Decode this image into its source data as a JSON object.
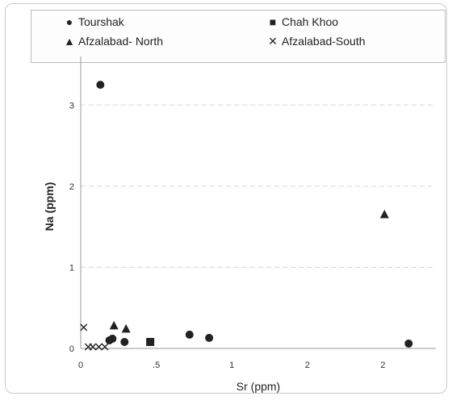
{
  "chart_data": {
    "type": "scatter",
    "xlabel": "Sr (ppm)",
    "ylabel": "Na (ppm)",
    "x_tick_labels": [
      "0",
      ".5",
      "1",
      "2",
      "2"
    ],
    "y_tick_labels": [
      "0",
      "1",
      "2",
      "3"
    ],
    "xlim": [
      0,
      2.35
    ],
    "ylim": [
      0,
      3.5
    ],
    "grid": true,
    "legend_position": "top",
    "series": [
      {
        "name": "Tourshak",
        "marker": "circle",
        "color": "#222222",
        "points": [
          [
            0.13,
            3.25
          ],
          [
            0.19,
            0.1
          ],
          [
            0.21,
            0.12
          ],
          [
            0.29,
            0.08
          ],
          [
            0.72,
            0.17
          ],
          [
            0.85,
            0.13
          ],
          [
            2.17,
            0.06
          ]
        ]
      },
      {
        "name": "Chah Khoo",
        "marker": "square",
        "color": "#222222",
        "points": [
          [
            0.46,
            0.08
          ]
        ]
      },
      {
        "name": "Afzalabad- North",
        "marker": "triangle",
        "color": "#222222",
        "points": [
          [
            0.22,
            0.28
          ],
          [
            0.3,
            0.24
          ],
          [
            2.01,
            1.65
          ]
        ]
      },
      {
        "name": "Afzalabad-South",
        "marker": "x",
        "color": "#222222",
        "points": [
          [
            0.02,
            0.26
          ],
          [
            0.05,
            0.02
          ],
          [
            0.08,
            0.02
          ],
          [
            0.12,
            0.02
          ],
          [
            0.16,
            0.02
          ]
        ]
      }
    ]
  }
}
